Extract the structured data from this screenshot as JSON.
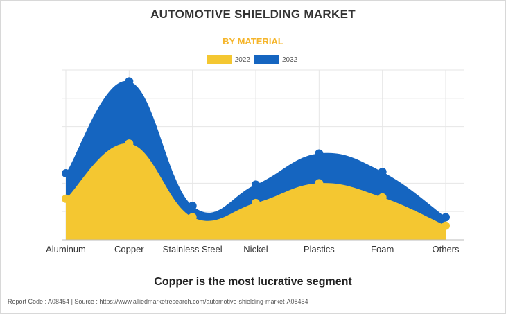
{
  "header": {
    "title": "AUTOMOTIVE SHIELDING MARKET",
    "subtitle": "BY MATERIAL"
  },
  "chart_data": {
    "type": "area",
    "categories": [
      "Aluminum",
      "Copper",
      "Stainless Steel",
      "Nickel",
      "Plastics",
      "Foam",
      "Others"
    ],
    "series": [
      {
        "name": "2022",
        "color": "#f4c731",
        "values": [
          1.45,
          3.4,
          0.8,
          1.3,
          2.0,
          1.5,
          0.5
        ]
      },
      {
        "name": "2032",
        "color": "#1565c0",
        "values": [
          2.35,
          5.6,
          1.2,
          1.95,
          3.05,
          2.4,
          0.8
        ]
      }
    ],
    "ylim": [
      0,
      6
    ],
    "grid": true,
    "legend": "top-center",
    "xlabel": "",
    "ylabel": ""
  },
  "footer": {
    "headline": "Copper is the most lucrative segment",
    "report_line": "Report Code : A08454  |  Source : https://www.alliedmarketresearch.com/automotive-shielding-market-A08454"
  }
}
